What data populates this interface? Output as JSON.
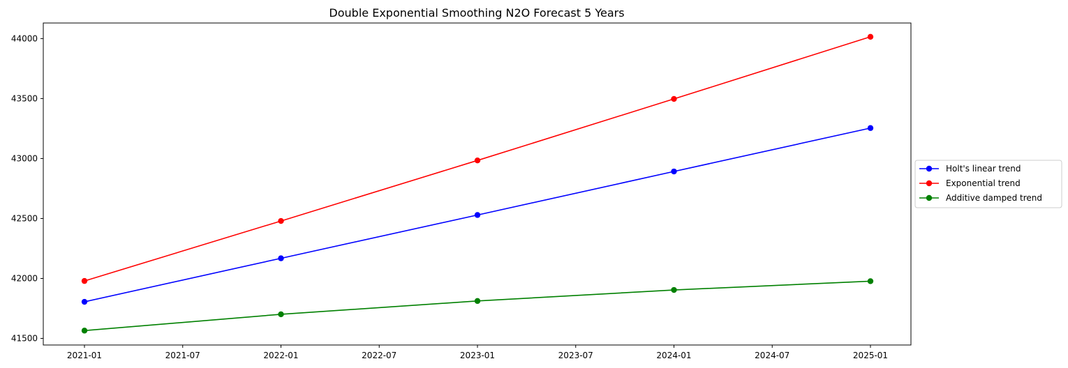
{
  "chart_data": {
    "type": "line",
    "title": "Double Exponential Smoothing N2O Forecast 5 Years",
    "xlabel": "",
    "ylabel": "",
    "x": [
      "2021-01",
      "2022-01",
      "2023-01",
      "2024-01",
      "2025-01"
    ],
    "x_ticks": [
      "2021-01",
      "2021-07",
      "2022-01",
      "2022-07",
      "2023-01",
      "2023-07",
      "2024-01",
      "2024-07",
      "2025-01"
    ],
    "y_ticks": [
      41500,
      42000,
      42500,
      43000,
      43500,
      44000
    ],
    "ylim": [
      41445,
      44130
    ],
    "grid": false,
    "legend_position": "right (outside plot)",
    "series": [
      {
        "name": "Holt's linear trend",
        "color": "#0000ff",
        "marker": "circle",
        "values": [
          41805,
          42168,
          42529,
          42892,
          43254
        ]
      },
      {
        "name": "Exponential trend",
        "color": "#ff0000",
        "marker": "circle",
        "values": [
          41979,
          42479,
          42984,
          43497,
          44015
        ]
      },
      {
        "name": "Additive damped trend",
        "color": "#008000",
        "marker": "circle",
        "values": [
          41565,
          41701,
          41812,
          41904,
          41977
        ]
      }
    ]
  }
}
